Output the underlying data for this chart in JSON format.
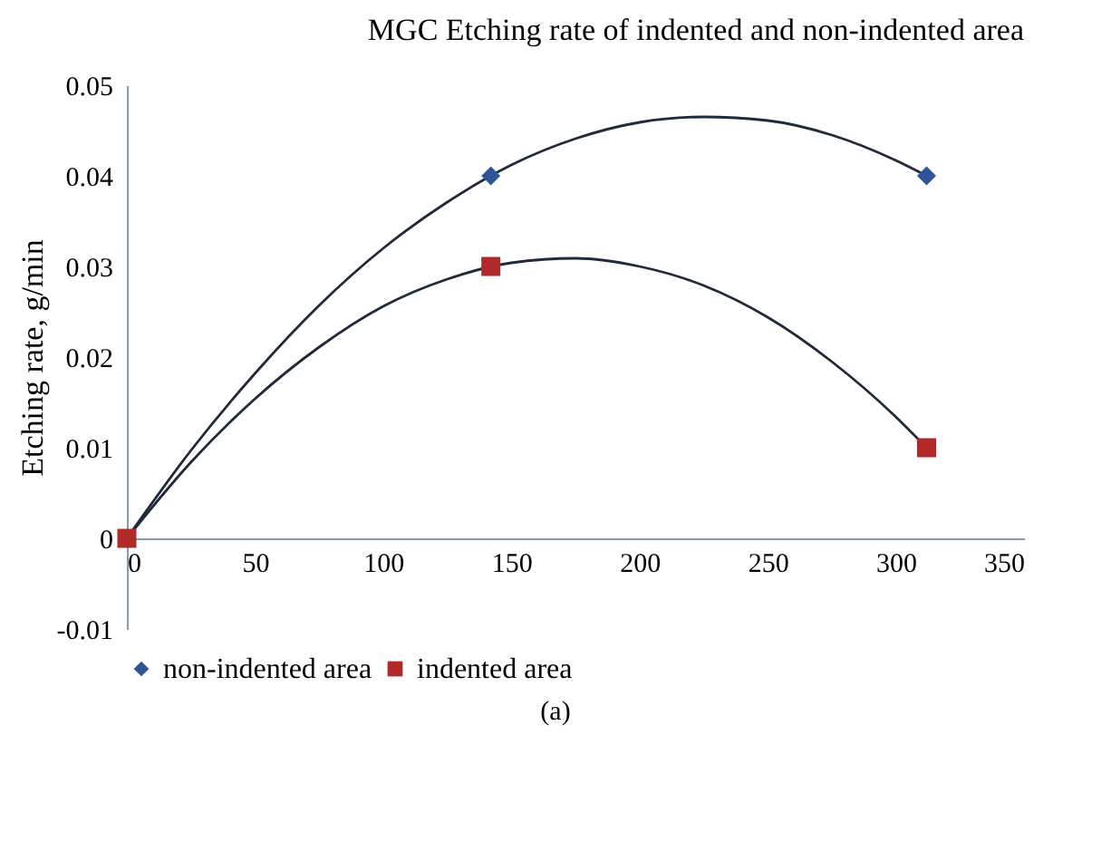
{
  "chart_data": {
    "type": "scatter",
    "title": "MGC Etching rate of indented and non-indented area",
    "ylabel": "Etching rate, g/min",
    "xlim": [
      0,
      350
    ],
    "xticks": [
      0,
      50,
      100,
      150,
      200,
      250,
      300,
      350
    ],
    "ylim": [
      -0.01,
      0.05
    ],
    "yticks": [
      -0.01,
      0,
      0.01,
      0.02,
      0.03,
      0.04,
      0.05
    ],
    "grid": false,
    "legend": "bottom",
    "annotations": [
      "(a)"
    ],
    "series": [
      {
        "name": "non-indented area",
        "color": "#2e5597",
        "marker": "diamond",
        "x": [
          142,
          312
        ],
        "values": [
          0.04,
          0.04
        ]
      },
      {
        "name": "indented area",
        "color": "#b02a2a",
        "marker": "square",
        "x": [
          0,
          142,
          312
        ],
        "values": [
          0,
          0.03,
          0.01
        ]
      },
      {
        "type": "line",
        "color": "#1f2a3a",
        "line_style": "solid",
        "x": [
          0,
          25,
          50,
          75,
          100,
          125,
          150,
          175,
          200,
          225,
          250,
          275,
          300,
          312
        ],
        "values": [
          0,
          0.0097,
          0.0182,
          0.0257,
          0.032,
          0.0371,
          0.0412,
          0.0441,
          0.0459,
          0.0465,
          0.0461,
          0.0445,
          0.0417,
          0.04
        ]
      },
      {
        "type": "line",
        "color": "#1f2a3a",
        "line_style": "solid",
        "x": [
          0,
          25,
          50,
          75,
          100,
          125,
          150,
          175,
          200,
          225,
          250,
          275,
          300,
          312
        ],
        "values": [
          0,
          0.0084,
          0.0154,
          0.0211,
          0.0256,
          0.0286,
          0.0304,
          0.0309,
          0.03,
          0.0279,
          0.0244,
          0.0195,
          0.0134,
          0.01
        ]
      }
    ]
  }
}
